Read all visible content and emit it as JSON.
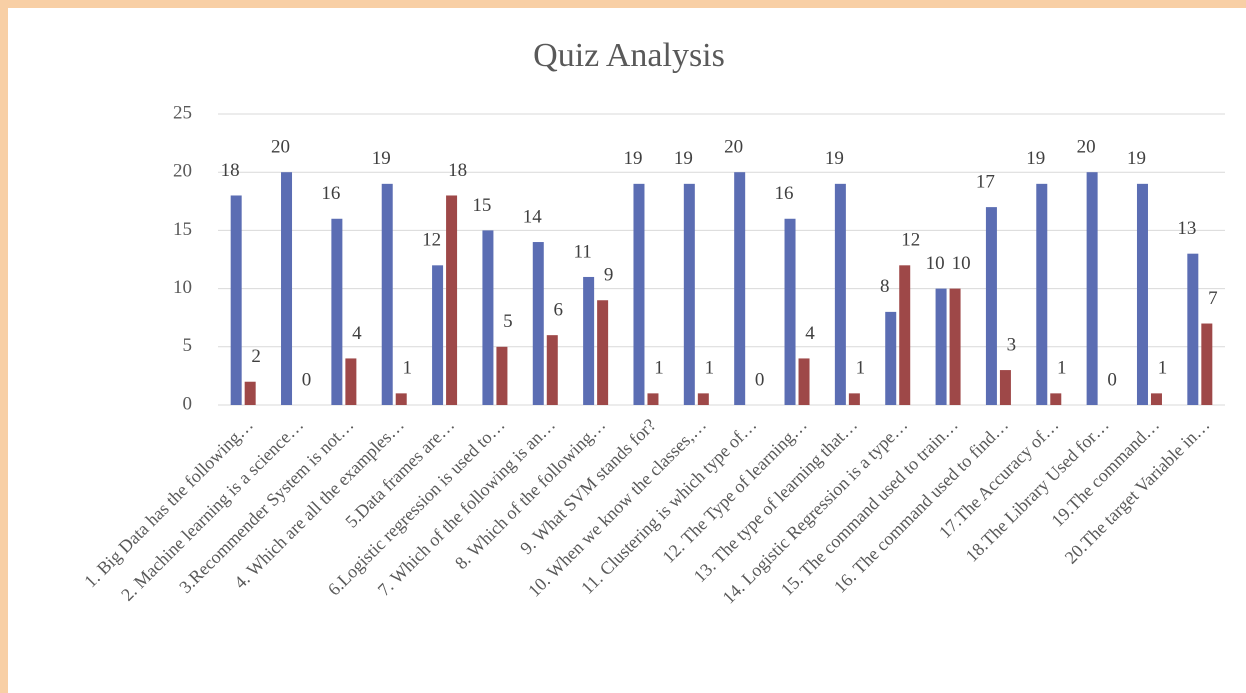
{
  "chart_data": {
    "type": "bar",
    "title": "Quiz Analysis",
    "categories": [
      "1. Big Data has the following…",
      "2. Machine learning is a science…",
      "3.Recommender System is not…",
      "4. Which are all the examples…",
      "5.Data frames are…",
      "6.Logistic regression is used to…",
      "7. Which of the following is an…",
      "8. Which of the following…",
      "9. What SVM stands for?",
      "10. When we know the classes,…",
      "11. Clustering is which type of…",
      "12. The Type of learning…",
      "13. The type of learning that…",
      "14. Logistic Regression is a type…",
      "15. The command used to train…",
      "16. The command used to find…",
      "17.The Accuracy of…",
      "18.The Library Used for…",
      "19.The command…",
      "20.The target Variable in…"
    ],
    "series": [
      {
        "color": "#5b6db3",
        "values": [
          18,
          20,
          16,
          19,
          12,
          15,
          14,
          11,
          19,
          19,
          20,
          16,
          19,
          8,
          10,
          17,
          19,
          20,
          19,
          13
        ]
      },
      {
        "color": "#9e4848",
        "values": [
          2,
          0,
          4,
          1,
          18,
          5,
          6,
          9,
          1,
          1,
          0,
          4,
          1,
          12,
          10,
          3,
          1,
          0,
          1,
          7
        ]
      }
    ],
    "ylim": [
      0,
      25
    ],
    "yticks": [
      0,
      5,
      10,
      15,
      20,
      25
    ],
    "grid": true
  }
}
